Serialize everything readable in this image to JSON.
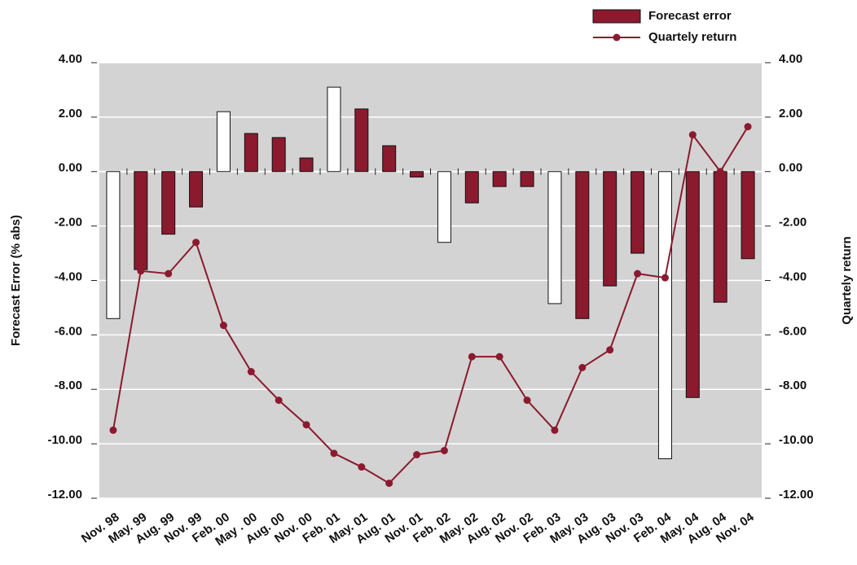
{
  "chart_data": {
    "type": "bar-line",
    "categories": [
      "Nov. 98",
      "May. 99",
      "Aug. 99",
      "Nov. 99",
      "Feb. 00",
      "May . 00",
      "Aug. 00",
      "Nov. 00",
      "Feb. 01",
      "May. 01",
      "Aug. 01",
      "Nov. 01",
      "Feb. 02",
      "May. 02",
      "Aug. 02",
      "Nov. 02",
      "Feb. 03",
      "May. 03",
      "Aug. 03",
      "Nov. 03",
      "Feb. 04",
      "May. 04",
      "Aug. 04",
      "Nov. 04"
    ],
    "series": [
      {
        "name": "Forecast error",
        "type": "bar",
        "color": "#8b1a2e",
        "colors": [
          "#ffffff",
          "#8b1a2e",
          "#8b1a2e",
          "#8b1a2e",
          "#ffffff",
          "#8b1a2e",
          "#8b1a2e",
          "#8b1a2e",
          "#ffffff",
          "#8b1a2e",
          "#8b1a2e",
          "#8b1a2e",
          "#ffffff",
          "#8b1a2e",
          "#8b1a2e",
          "#8b1a2e",
          "#ffffff",
          "#8b1a2e",
          "#8b1a2e",
          "#8b1a2e",
          "#ffffff",
          "#8b1a2e",
          "#8b1a2e",
          "#8b1a2e"
        ],
        "values": [
          -5.4,
          -3.6,
          -2.3,
          -1.3,
          2.2,
          1.4,
          1.25,
          0.5,
          3.1,
          2.3,
          0.95,
          -0.2,
          -2.6,
          -1.15,
          -0.55,
          -0.55,
          -4.85,
          -5.4,
          -4.2,
          -3.0,
          -10.55,
          -8.3,
          -4.8,
          -3.2
        ]
      },
      {
        "name": "Quartely return",
        "type": "line",
        "axis": "y2",
        "color": "#8b1a2e",
        "values": [
          -9.5,
          -3.65,
          -3.75,
          -2.6,
          -5.65,
          -7.35,
          -8.4,
          -9.3,
          -10.35,
          -10.85,
          -11.45,
          -10.4,
          -10.25,
          -6.8,
          -6.8,
          -8.4,
          -9.5,
          -7.2,
          -6.55,
          -3.75,
          -3.9,
          1.35,
          0,
          1.65
        ]
      }
    ],
    "y_label": "Forecast Error (% abs)",
    "y2_label": "Quartely return",
    "ylim": [
      -12,
      4
    ],
    "yticks": [
      {
        "value": -12,
        "label": "-12.00"
      },
      {
        "value": -10,
        "label": "-10.00"
      },
      {
        "value": -8,
        "label": "-8.00"
      },
      {
        "value": -6,
        "label": "-6.00"
      },
      {
        "value": -4,
        "label": "-4.00"
      },
      {
        "value": -2,
        "label": "-2.00"
      },
      {
        "value": 0,
        "label": "0.00"
      },
      {
        "value": 2,
        "label": "2.00"
      },
      {
        "value": 4,
        "label": "4.00"
      }
    ],
    "y2lim": [
      -12,
      4
    ],
    "y2ticks": [
      {
        "value": -12,
        "label": "-12.00"
      },
      {
        "value": -10,
        "label": "-10.00"
      },
      {
        "value": -8,
        "label": "-8.00"
      },
      {
        "value": -6,
        "label": "-6.00"
      },
      {
        "value": -4,
        "label": "-4.00"
      },
      {
        "value": -2,
        "label": "-2.00"
      },
      {
        "value": 0,
        "label": "0.00"
      },
      {
        "value": 2,
        "label": "2.00"
      },
      {
        "value": 4,
        "label": "4.00"
      }
    ],
    "grid": true,
    "legend": "top-right"
  }
}
